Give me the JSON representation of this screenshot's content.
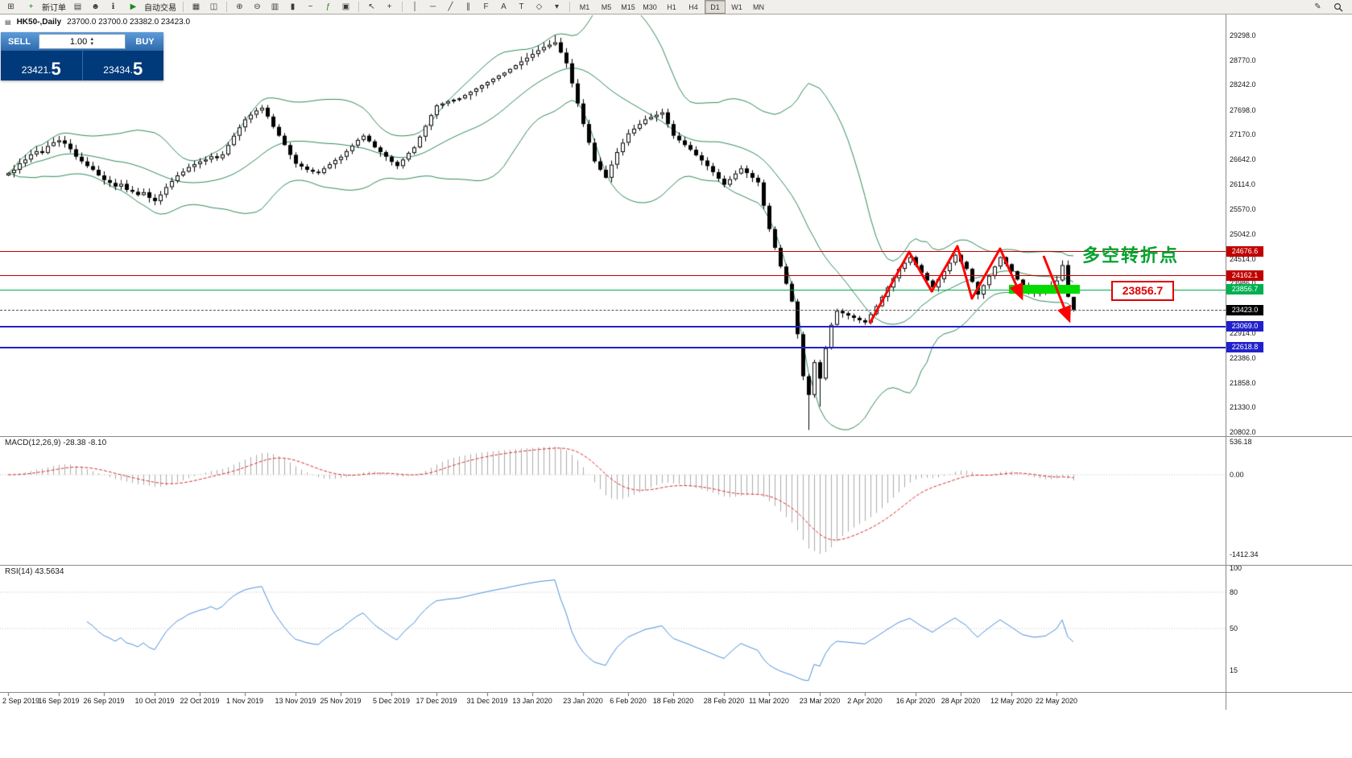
{
  "toolbar": {
    "new_order_label": "新订单",
    "autotrade_label": "自动交易",
    "timeframes": [
      "M1",
      "M5",
      "M15",
      "M30",
      "H1",
      "H4",
      "D1",
      "W1",
      "MN"
    ],
    "active_timeframe": "D1"
  },
  "icons": {
    "new_chart": "⊞",
    "plus": "+",
    "market_watch": "▤",
    "profiles": "☻",
    "data_window": "ℹ",
    "play": "▶",
    "tile_windows": "▦",
    "cascade_windows": "◫",
    "zoom_in": "⊕",
    "zoom_out": "⊖",
    "bar_chart": "▥",
    "candle_chart": "▮",
    "line_chart": "~",
    "indicators": "ƒ",
    "templates": "▣",
    "cursor": "↖",
    "crosshair": "+",
    "vline": "│",
    "hline": "─",
    "trendline": "╱",
    "channel": "∥",
    "fibonacci": "F",
    "text": "A",
    "label": "T",
    "shapes": "◇",
    "arrows": "▾",
    "spinner_up": "▲",
    "spinner_down": "▼",
    "chart_mini": "▤",
    "pencil": "✎"
  },
  "chart": {
    "symbol_title": "HK50-,Daily",
    "ohlc_text": "23700.0  23700.0  23382.0  23423.0"
  },
  "trade_panel": {
    "sell_label": "SELL",
    "buy_label": "BUY",
    "volume": "1.00",
    "sell_price_main": "23421.",
    "sell_price_big": "5",
    "buy_price_main": "23434.",
    "buy_price_big": "5"
  },
  "price_axis": {
    "labels": [
      "29298.0",
      "28770.0",
      "28242.0",
      "27698.0",
      "27170.0",
      "26642.0",
      "26114.0",
      "25570.0",
      "25042.0",
      "24514.0",
      "23986.0",
      "22914.0",
      "22386.0",
      "21858.0",
      "21330.0",
      "20802.0"
    ]
  },
  "h_lines": [
    {
      "label": "24676.6",
      "value": 24676.6,
      "color": "#C00000"
    },
    {
      "label": "24162.1",
      "value": 24162.1,
      "color": "#C00000"
    },
    {
      "label": "23856.7",
      "value": 23856.7,
      "color": "#00B050"
    },
    {
      "label": "23423.0",
      "value": 23423.0,
      "color": "#000000"
    },
    {
      "label": "23069.0",
      "value": 23069.0,
      "color": "#2121CC"
    },
    {
      "label": "22618.8",
      "value": 22618.8,
      "color": "#2121CC"
    }
  ],
  "annotations": {
    "turning_point_text": "多空转折点",
    "price_box_label": "23856.7",
    "annotation_color": "#FF0000",
    "highlight_color": "#00DC00",
    "text_color": "#00A32E"
  },
  "macd": {
    "title": "MACD(12,26,9) -28.38 -8.10",
    "axis": [
      "536.18",
      "0.00",
      "-1412.34"
    ]
  },
  "rsi": {
    "title": "RSI(14) 43.5634",
    "axis": [
      "100",
      "80",
      "50",
      "15"
    ]
  },
  "date_axis": [
    "2 Sep 2019",
    "16 Sep 2019",
    "26 Sep 2019",
    "10 Oct 2019",
    "22 Oct 2019",
    "1 Nov 2019",
    "13 Nov 2019",
    "25 Nov 2019",
    "5 Dec 2019",
    "17 Dec 2019",
    "31 Dec 2019",
    "13 Jan 2020",
    "23 Jan 2020",
    "6 Feb 2020",
    "18 Feb 2020",
    "28 Feb 2020",
    "11 Mar 2020",
    "23 Mar 2020",
    "2 Apr 2020",
    "16 Apr 2020",
    "28 Apr 2020",
    "12 May 2020",
    "22 May 2020"
  ],
  "chart_data": {
    "type": "candlestick",
    "symbol": "HK50",
    "period": "Daily",
    "price_axis_range": {
      "top": 29298.0,
      "bottom": 20802.0
    },
    "bollinger": {
      "period": 20,
      "deviation": 2
    },
    "macd_params": {
      "fast": 12,
      "slow": 26,
      "signal": 9
    },
    "rsi_params": {
      "period": 14
    },
    "date_indices": [
      0,
      9,
      17,
      26,
      34,
      42,
      51,
      59,
      68,
      76,
      85,
      93,
      102,
      110,
      118,
      127,
      135,
      144,
      152,
      161,
      169,
      178,
      186
    ],
    "candles": {
      "first_open": 26300,
      "closes": [
        26350,
        26420,
        26560,
        26640,
        26750,
        26820,
        26780,
        26930,
        27010,
        27050,
        26980,
        26860,
        26700,
        26600,
        26500,
        26420,
        26300,
        26200,
        26140,
        26060,
        26120,
        25990,
        25950,
        25880,
        25940,
        25820,
        25750,
        25890,
        26050,
        26180,
        26300,
        26380,
        26480,
        26540,
        26600,
        26640,
        26710,
        26670,
        26750,
        26950,
        27150,
        27330,
        27500,
        27600,
        27690,
        27750,
        27560,
        27340,
        27150,
        26950,
        26740,
        26550,
        26490,
        26420,
        26380,
        26350,
        26450,
        26540,
        26630,
        26700,
        26820,
        26940,
        27060,
        27150,
        27030,
        26900,
        26800,
        26700,
        26590,
        26500,
        26640,
        26780,
        26900,
        27130,
        27360,
        27590,
        27800,
        27840,
        27890,
        27920,
        27950,
        28020,
        28090,
        28160,
        28230,
        28300,
        28370,
        28440,
        28500,
        28580,
        28660,
        28740,
        28820,
        28900,
        28980,
        29050,
        29100,
        29150,
        28930,
        28700,
        28270,
        27840,
        27400,
        27000,
        26600,
        26420,
        26250,
        26530,
        26800,
        27000,
        27200,
        27300,
        27400,
        27500,
        27550,
        27600,
        27650,
        27400,
        27150,
        27050,
        26950,
        26850,
        26730,
        26620,
        26500,
        26370,
        26230,
        26100,
        26220,
        26340,
        26450,
        26350,
        26250,
        26150,
        25650,
        25150,
        24750,
        24350,
        23980,
        23600,
        22900,
        22000,
        21600,
        22300,
        21950,
        22600,
        23100,
        23400,
        23350,
        23300,
        23250,
        23200,
        23150,
        23330,
        23500,
        23700,
        23900,
        24100,
        24300,
        24430,
        24550,
        24380,
        24210,
        24050,
        23900,
        24080,
        24250,
        24430,
        24600,
        24450,
        24300,
        24020,
        23750,
        23950,
        24150,
        24350,
        24550,
        24400,
        24250,
        24070,
        23900,
        23840,
        23780,
        23800,
        23820,
        23930,
        24050,
        24380,
        23700,
        23423
      ],
      "high_overrides": {
        "97": 29300,
        "187": 24480,
        "189": 23700
      },
      "low_overrides": {
        "142": 20850,
        "144": 21350,
        "189": 23382
      },
      "last_candle": {
        "open": 23700.0,
        "high": 23700.0,
        "low": 23382.0,
        "close": 23423.0
      }
    },
    "styles": {
      "band_color": "#2E8B57",
      "macd_signal": "#D93030",
      "macd_hist": "#ABABAB",
      "rsi_color": "#4A90D9",
      "candle_up": "#FFFFFF",
      "candle_down": "#000000"
    }
  }
}
